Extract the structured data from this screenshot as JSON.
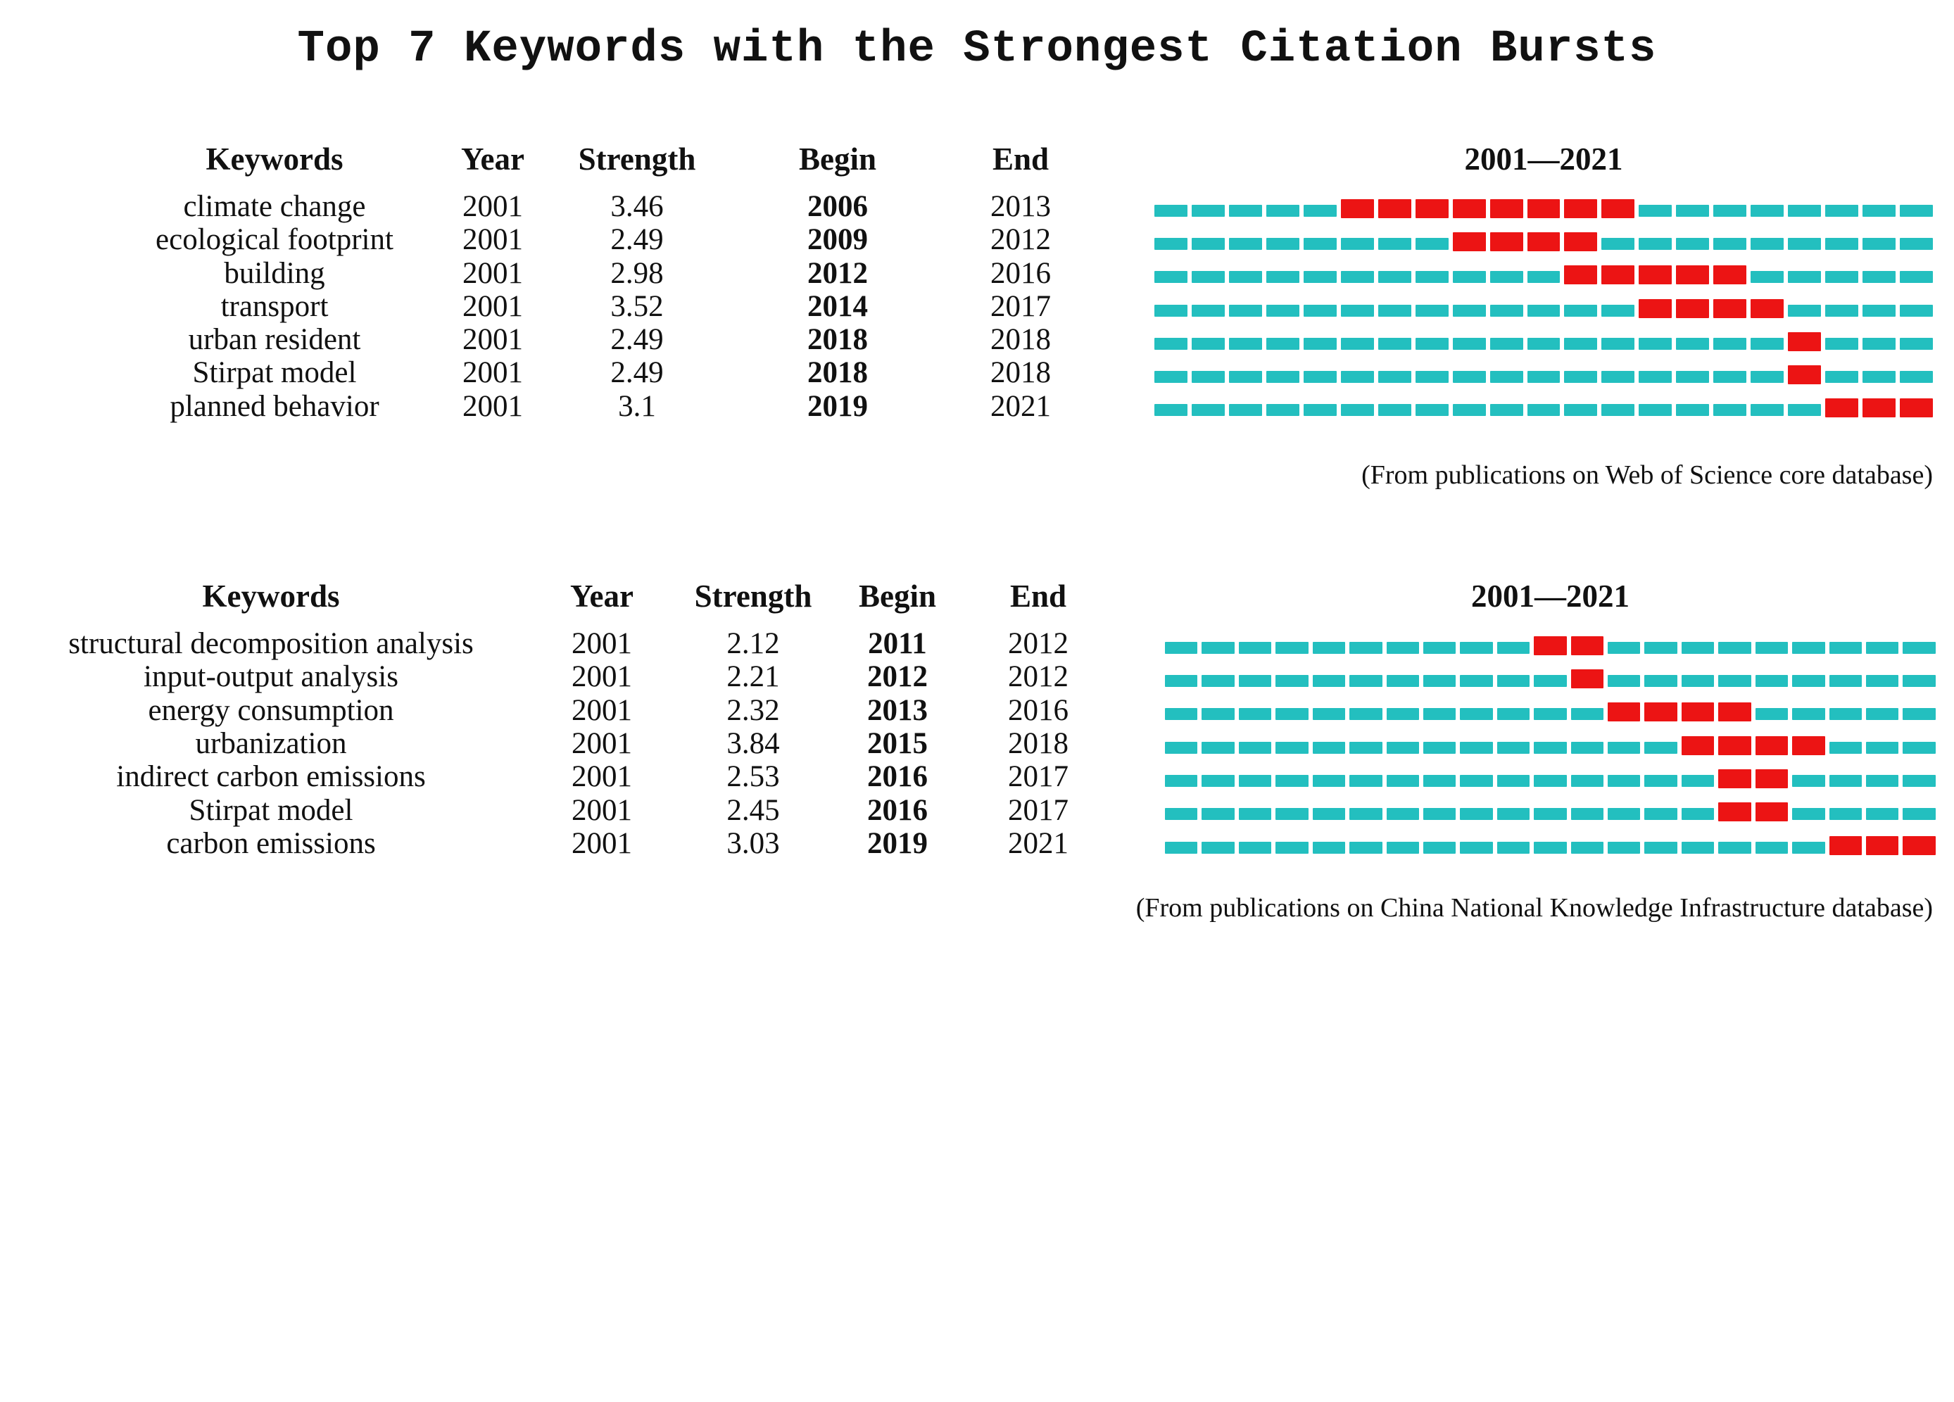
{
  "page_title": "Top 7 Keywords with the Strongest Citation Bursts",
  "colors": {
    "timeline_base": "#23BFBF",
    "burst": "#EC1414",
    "text": "#111111",
    "background": "#FFFFFF"
  },
  "chart_data": [
    {
      "type": "table",
      "title": "2001—2021",
      "caption": "(From publications on Web of Science core database)",
      "column_labels": {
        "keywords": "Keywords",
        "year": "Year",
        "strength": "Strength",
        "begin": "Begin",
        "end": "End",
        "timeline": "2001—2021"
      },
      "year_axis": {
        "start": 2001,
        "end": 2021
      },
      "legend": {
        "base_segment": "non-burst year",
        "burst_segment": "citation burst year"
      },
      "rows": [
        {
          "keyword": "climate change",
          "year": 2001,
          "strength": 3.46,
          "begin": 2006,
          "end": 2013
        },
        {
          "keyword": "ecological footprint",
          "year": 2001,
          "strength": 2.49,
          "begin": 2009,
          "end": 2012
        },
        {
          "keyword": "building",
          "year": 2001,
          "strength": 2.98,
          "begin": 2012,
          "end": 2016
        },
        {
          "keyword": "transport",
          "year": 2001,
          "strength": 3.52,
          "begin": 2014,
          "end": 2017
        },
        {
          "keyword": "urban resident",
          "year": 2001,
          "strength": 2.49,
          "begin": 2018,
          "end": 2018
        },
        {
          "keyword": "Stirpat model",
          "year": 2001,
          "strength": 2.49,
          "begin": 2018,
          "end": 2018
        },
        {
          "keyword": "planned behavior",
          "year": 2001,
          "strength": 3.1,
          "begin": 2019,
          "end": 2021
        }
      ]
    },
    {
      "type": "table",
      "title": "2001—2021",
      "caption": "(From publications on China National Knowledge Infrastructure database)",
      "column_labels": {
        "keywords": "Keywords",
        "year": "Year",
        "strength": "Strength",
        "begin": "Begin",
        "end": "End",
        "timeline": "2001—2021"
      },
      "year_axis": {
        "start": 2001,
        "end": 2021
      },
      "legend": {
        "base_segment": "non-burst year",
        "burst_segment": "citation burst year"
      },
      "rows": [
        {
          "keyword": "structural decomposition analysis",
          "year": 2001,
          "strength": 2.12,
          "begin": 2011,
          "end": 2012
        },
        {
          "keyword": "input-output analysis",
          "year": 2001,
          "strength": 2.21,
          "begin": 2012,
          "end": 2012
        },
        {
          "keyword": "energy consumption",
          "year": 2001,
          "strength": 2.32,
          "begin": 2013,
          "end": 2016
        },
        {
          "keyword": "urbanization",
          "year": 2001,
          "strength": 3.84,
          "begin": 2015,
          "end": 2018
        },
        {
          "keyword": "indirect carbon emissions",
          "year": 2001,
          "strength": 2.53,
          "begin": 2016,
          "end": 2017
        },
        {
          "keyword": "Stirpat model",
          "year": 2001,
          "strength": 2.45,
          "begin": 2016,
          "end": 2017
        },
        {
          "keyword": "carbon emissions",
          "year": 2001,
          "strength": 3.03,
          "begin": 2019,
          "end": 2021
        }
      ]
    }
  ]
}
